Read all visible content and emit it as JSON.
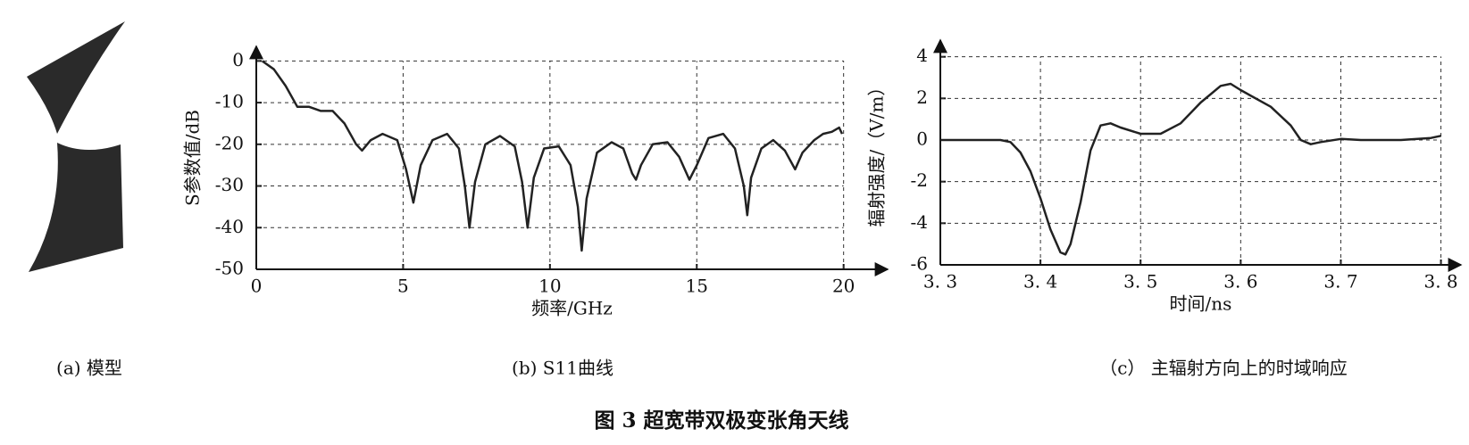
{
  "panel_a": {
    "caption": "(a) 模型"
  },
  "chart_data": [
    {
      "type": "line",
      "caption": "(b) S11曲线",
      "x_label": "频率/GHz",
      "y_label": "S参数值/dB",
      "xlim": [
        0,
        21.5
      ],
      "ylim": [
        -50,
        3.5
      ],
      "xticks": [
        0,
        5,
        10,
        15,
        20
      ],
      "yticks": [
        -50,
        -40,
        -30,
        -20,
        -10,
        0
      ],
      "grid": true,
      "series": [
        {
          "color": "#222222",
          "x": [
            0.2,
            0.6,
            1.0,
            1.4,
            1.8,
            2.2,
            2.6,
            3.0,
            3.4,
            3.6,
            3.9,
            4.3,
            4.8,
            5.1,
            5.35,
            5.6,
            6.0,
            6.5,
            6.9,
            7.1,
            7.26,
            7.45,
            7.8,
            8.3,
            8.8,
            9.05,
            9.24,
            9.45,
            9.8,
            10.3,
            10.7,
            10.95,
            11.08,
            11.25,
            11.6,
            12.1,
            12.5,
            12.8,
            12.93,
            13.1,
            13.5,
            14.0,
            14.4,
            14.75,
            15.0,
            15.4,
            15.9,
            16.3,
            16.6,
            16.72,
            16.85,
            17.2,
            17.6,
            18.0,
            18.35,
            18.6,
            19.0,
            19.3,
            19.6,
            19.85,
            19.95
          ],
          "values": [
            0,
            -2,
            -6,
            -11,
            -11,
            -12,
            -12,
            -15,
            -20,
            -21.5,
            -19,
            -17.5,
            -19,
            -26,
            -34,
            -25,
            -19,
            -17.5,
            -21,
            -30,
            -40,
            -29,
            -20,
            -18,
            -20.5,
            -29,
            -40,
            -28,
            -21,
            -20.5,
            -25,
            -35,
            -45.5,
            -33,
            -22,
            -19.5,
            -21,
            -27,
            -28.5,
            -25,
            -20,
            -19.5,
            -23,
            -28.5,
            -25,
            -18.5,
            -17.5,
            -21,
            -30,
            -37,
            -28,
            -21,
            -19,
            -21.5,
            -26,
            -22,
            -19,
            -17.5,
            -17,
            -16,
            -17.5
          ]
        }
      ]
    },
    {
      "type": "line",
      "caption": "（c） 主辐射方向上的时域响应",
      "x_label": "时间/ns",
      "y_label": "辐射强度/（V/m）",
      "xlim": [
        3.3,
        3.82
      ],
      "ylim": [
        -6,
        4.8
      ],
      "xticks": [
        {
          "value": 3.3,
          "label": "3. 3"
        },
        {
          "value": 3.4,
          "label": "3. 4"
        },
        {
          "value": 3.5,
          "label": "3. 5"
        },
        {
          "value": 3.6,
          "label": "3. 6"
        },
        {
          "value": 3.7,
          "label": "3. 7"
        },
        {
          "value": 3.8,
          "label": "3. 8"
        }
      ],
      "yticks": [
        -6,
        -4,
        -2,
        0,
        2,
        4
      ],
      "grid": true,
      "series": [
        {
          "color": "#222222",
          "x": [
            3.3,
            3.36,
            3.37,
            3.38,
            3.39,
            3.4,
            3.41,
            3.42,
            3.425,
            3.43,
            3.44,
            3.45,
            3.46,
            3.47,
            3.48,
            3.5,
            3.52,
            3.54,
            3.56,
            3.58,
            3.59,
            3.6,
            3.63,
            3.65,
            3.66,
            3.67,
            3.68,
            3.7,
            3.72,
            3.76,
            3.79,
            3.8
          ],
          "values": [
            0,
            0,
            -0.1,
            -0.6,
            -1.5,
            -2.8,
            -4.3,
            -5.4,
            -5.5,
            -5.0,
            -3,
            -0.5,
            0.7,
            0.8,
            0.6,
            0.3,
            0.3,
            0.8,
            1.8,
            2.6,
            2.7,
            2.4,
            1.6,
            0.7,
            0,
            -0.2,
            -0.1,
            0.05,
            0,
            0,
            0.1,
            0.2
          ]
        }
      ]
    }
  ],
  "figure_caption": "图 3   超宽带双极变张角天线"
}
